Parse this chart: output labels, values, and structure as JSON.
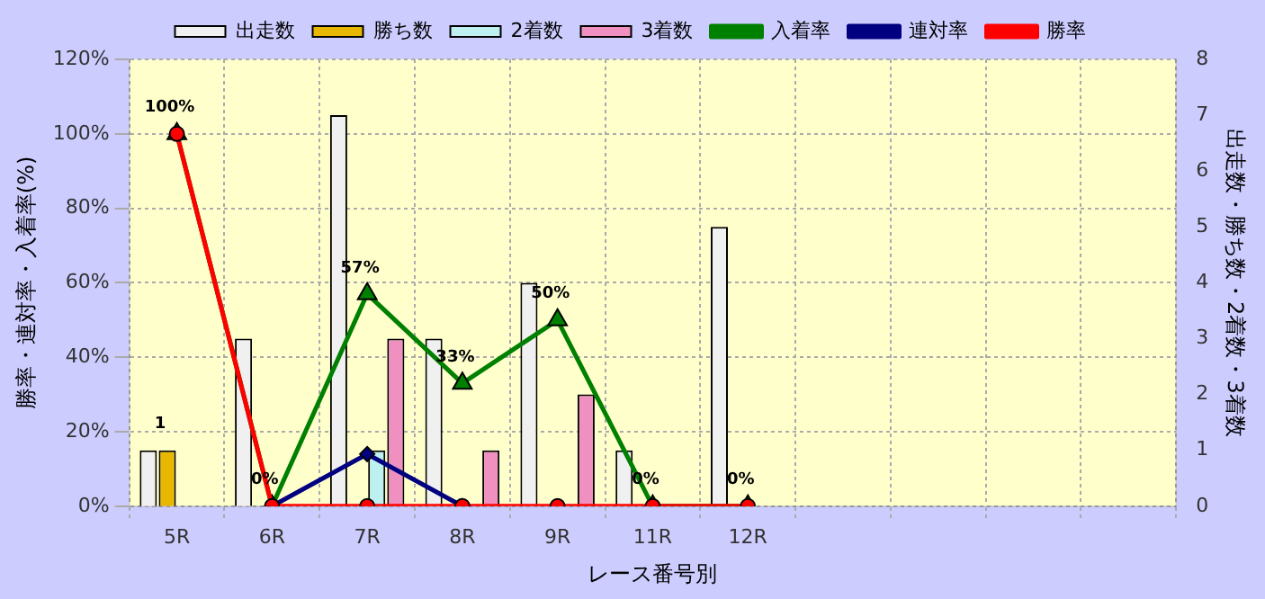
{
  "chart_data": {
    "type": "bar",
    "xlabel": "レース番号別",
    "ylabel": "勝率・連対率・入着率(%)",
    "y2label": "出走数・勝ち数・2着数・3着数",
    "categories": [
      "5R",
      "6R",
      "7R",
      "8R",
      "9R",
      "11R",
      "12R",
      null,
      null,
      null,
      null
    ],
    "series": [
      {
        "name": "出走数",
        "axis": "y2",
        "color": "#f0f0f0",
        "values": [
          1,
          3,
          7,
          3,
          4,
          1,
          5,
          null,
          null,
          null,
          null
        ]
      },
      {
        "name": "勝ち数",
        "axis": "y2",
        "color": "#e8b800",
        "values": [
          1,
          0,
          0,
          0,
          0,
          0,
          0,
          null,
          null,
          null,
          null
        ],
        "value_labels": [
          "1",
          null,
          null,
          null,
          null,
          null,
          null,
          null,
          null,
          null,
          null
        ]
      },
      {
        "name": "2着数",
        "axis": "y2",
        "color": "#bff0f0",
        "values": [
          0,
          0,
          1,
          0,
          0,
          0,
          0,
          null,
          null,
          null,
          null
        ]
      },
      {
        "name": "3着数",
        "axis": "y2",
        "color": "#f090c0",
        "values": [
          0,
          0,
          3,
          1,
          2,
          0,
          0,
          null,
          null,
          null,
          null
        ]
      },
      {
        "name": "入着率",
        "type": "line",
        "axis": "y",
        "color": "#008000",
        "marker": "triangle",
        "values": [
          100,
          0,
          57,
          33,
          50,
          0,
          0,
          null,
          null,
          null,
          null
        ],
        "value_labels": [
          "100%",
          "0%",
          "57%",
          "33%",
          "50%",
          "0%",
          "0%",
          null,
          null,
          null,
          null
        ]
      },
      {
        "name": "連対率",
        "type": "line",
        "axis": "y",
        "color": "#000080",
        "marker": "diamond",
        "values": [
          null,
          0,
          14,
          0,
          null,
          null,
          null,
          null,
          null,
          null,
          null
        ]
      },
      {
        "name": "勝率",
        "type": "line",
        "axis": "y",
        "color": "#ff0000",
        "marker": "circle",
        "values": [
          100,
          0,
          0,
          0,
          0,
          0,
          0,
          null,
          null,
          null,
          null
        ]
      }
    ],
    "ylim": [
      0,
      120
    ],
    "yticks": [
      {
        "value": 0,
        "label": "0%"
      },
      {
        "value": 20,
        "label": "20%"
      },
      {
        "value": 40,
        "label": "40%"
      },
      {
        "value": 60,
        "label": "60%"
      },
      {
        "value": 80,
        "label": "80%"
      },
      {
        "value": 100,
        "label": "100%"
      },
      {
        "value": 120,
        "label": "120%"
      }
    ],
    "y2lim": [
      0,
      8
    ],
    "y2ticks": [
      0,
      1,
      2,
      3,
      4,
      5,
      6,
      7,
      8
    ],
    "grid": true,
    "legend": "top"
  }
}
